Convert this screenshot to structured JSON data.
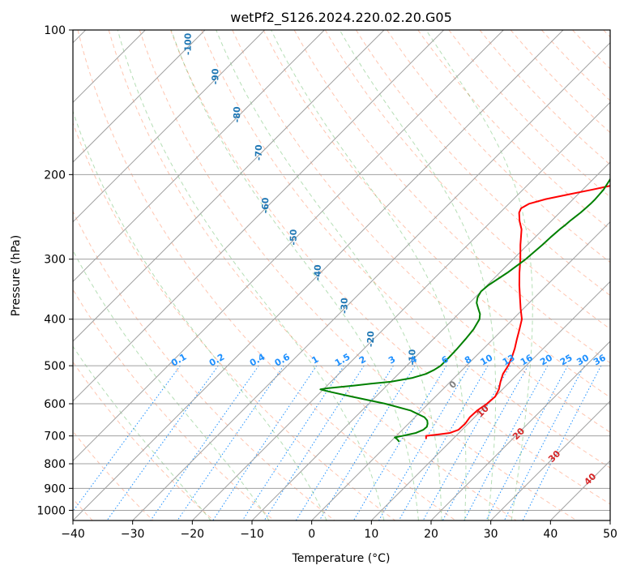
{
  "chart_data": {
    "type": "line",
    "subtype": "skew-t log-p diagram",
    "title": "wetPf2_S126.2024.220.02.20.G05",
    "xlabel": "Temperature (°C)",
    "ylabel": "Pressure (hPa)",
    "xlim": [
      -40,
      50
    ],
    "ylim": [
      1050,
      100
    ],
    "y_scale": "log",
    "grid": true,
    "x_ticks": [
      -40,
      -30,
      -20,
      -10,
      0,
      10,
      20,
      30,
      40,
      50
    ],
    "x_tick_labels": [
      "−40",
      "−30",
      "−20",
      "−10",
      "0",
      "10",
      "20",
      "30",
      "40",
      "50"
    ],
    "y_ticks": [
      100,
      200,
      300,
      400,
      500,
      600,
      700,
      800,
      900,
      1000
    ],
    "y_tick_labels": [
      "100",
      "200",
      "300",
      "400",
      "500",
      "600",
      "700",
      "800",
      "900",
      "1000"
    ],
    "isotherm_labels": [
      "-100",
      "-90",
      "-80",
      "-70",
      "-60",
      "-50",
      "-40",
      "-30",
      "-20",
      "-10"
    ],
    "mixing_ratio_labels": [
      "0.1",
      "0.2",
      "0.4",
      "0.6",
      "1",
      "1.5",
      "2",
      "3",
      "4",
      "6",
      "8",
      "10",
      "13",
      "16",
      "20",
      "25",
      "30",
      "36"
    ],
    "dry_adiabat_labels": [
      "10",
      "20",
      "30",
      "40"
    ],
    "moist_adiabat_labels": [
      "0"
    ],
    "series": [
      {
        "color": "#ff0000",
        "pressure": [
          710,
          700,
          695,
          690,
          680,
          660,
          640,
          620,
          600,
          580,
          560,
          540,
          520,
          500,
          480,
          460,
          440,
          420,
          400,
          380,
          360,
          340,
          320,
          300,
          280,
          260,
          250,
          240,
          235,
          230,
          225,
          220,
          215,
          210,
          205,
          200,
          195,
          190,
          185,
          180,
          175,
          170,
          165,
          160,
          150,
          140,
          130,
          120,
          110,
          100
        ],
        "temperature": [
          5.5,
          5.0,
          6.8,
          8.5,
          9.4,
          9.5,
          9.2,
          9.3,
          9.8,
          10.0,
          9.4,
          8.4,
          7.5,
          7.0,
          6.2,
          5.2,
          4.0,
          2.8,
          1.5,
          -0.5,
          -2.5,
          -4.6,
          -6.7,
          -8.8,
          -11.2,
          -13.6,
          -15.3,
          -16.8,
          -17.2,
          -16.6,
          -14.6,
          -11.6,
          -8.4,
          -5.4,
          -2.8,
          -0.5,
          1.5,
          3.2,
          4.9,
          6.4,
          7.8,
          9.3,
          10.7,
          12.1,
          15.0,
          18.1,
          21.2,
          24.3,
          27.3,
          30.3
        ]
      },
      {
        "color": "#008000",
        "pressure": [
          720,
          710,
          705,
          700,
          690,
          680,
          670,
          660,
          650,
          640,
          620,
          600,
          580,
          565,
          560,
          557,
          550,
          545,
          540,
          530,
          520,
          510,
          500,
          480,
          460,
          440,
          420,
          400,
          390,
          380,
          370,
          360,
          350,
          340,
          320,
          300,
          280,
          270,
          260,
          255,
          250,
          245,
          240,
          235,
          230,
          225,
          220,
          215,
          210,
          205,
          200,
          195,
          190,
          187,
          185,
          182,
          180,
          175,
          170,
          165,
          160,
          155,
          150,
          140,
          130,
          120,
          110,
          100
        ],
        "temperature": [
          1.5,
          0.6,
          0.0,
          1.0,
          2.8,
          3.5,
          3.6,
          3.2,
          2.6,
          1.6,
          -1.8,
          -7.2,
          -14.0,
          -19.0,
          -20.5,
          -19.5,
          -15.5,
          -13.0,
          -10.0,
          -7.0,
          -5.4,
          -4.7,
          -4.3,
          -4.3,
          -4.4,
          -4.6,
          -4.9,
          -5.6,
          -6.4,
          -7.6,
          -8.8,
          -9.6,
          -10.0,
          -9.8,
          -8.7,
          -7.9,
          -7.5,
          -7.4,
          -7.2,
          -7.0,
          -6.9,
          -6.7,
          -6.5,
          -6.4,
          -6.3,
          -6.3,
          -6.4,
          -6.5,
          -6.8,
          -7.1,
          -7.4,
          -7.8,
          -8.3,
          -8.7,
          -9.0,
          -9.2,
          -9.2,
          -8.8,
          -8.3,
          -7.7,
          -7.0,
          -6.3,
          -5.6,
          -4.2,
          -2.9,
          -1.5,
          -0.2,
          1.1
        ]
      }
    ]
  }
}
